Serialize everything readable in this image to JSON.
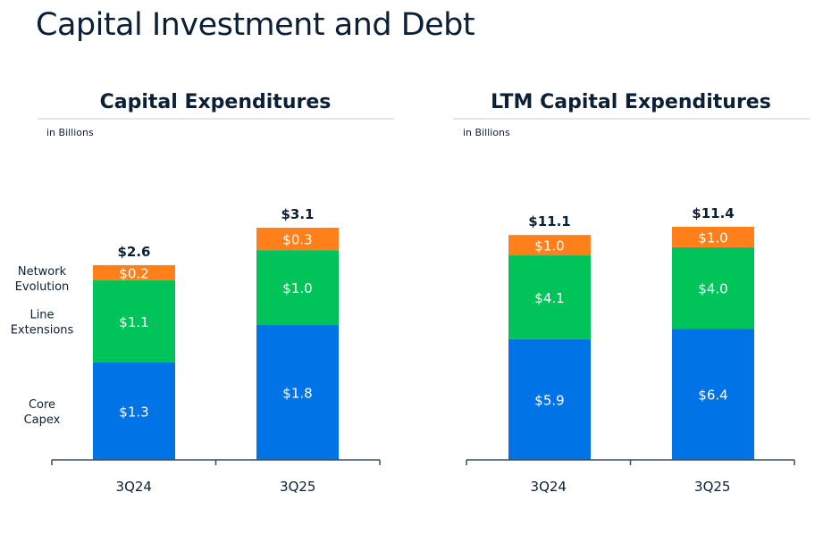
{
  "page": {
    "title": "Capital Investment and Debt"
  },
  "colors": {
    "core": "#0073e6",
    "line": "#00c35a",
    "network": "#ff7f1a",
    "text": "#0b2035",
    "axis": "#3a4a5a",
    "rule": "#d9dde2"
  },
  "chart_data": [
    {
      "type": "bar",
      "stacked": true,
      "title": "Capital Expenditures",
      "subtitle": "in Billions",
      "categories": [
        "3Q24",
        "3Q25"
      ],
      "series": [
        {
          "name": "Core Capex",
          "label": "Core\nCapex",
          "values": [
            1.3,
            1.8
          ],
          "labels": [
            "$1.3",
            "$1.8"
          ]
        },
        {
          "name": "Line Extensions",
          "label": "Line\nExtensions",
          "values": [
            1.1,
            1.0
          ],
          "labels": [
            "$1.1",
            "$1.0"
          ]
        },
        {
          "name": "Network Evolution",
          "label": "Network\nEvolution",
          "values": [
            0.2,
            0.3
          ],
          "labels": [
            "$0.2",
            "$0.3"
          ]
        }
      ],
      "totals": [
        2.6,
        3.1
      ],
      "total_labels": [
        "$2.6",
        "$3.1"
      ],
      "ylim": [
        0,
        3.1
      ],
      "legend": "left"
    },
    {
      "type": "bar",
      "stacked": true,
      "title": "LTM Capital Expenditures",
      "subtitle": "in Billions",
      "categories": [
        "3Q24",
        "3Q25"
      ],
      "series": [
        {
          "name": "Core Capex",
          "values": [
            5.9,
            6.4
          ],
          "labels": [
            "$5.9",
            "$6.4"
          ]
        },
        {
          "name": "Line Extensions",
          "values": [
            4.1,
            4.0
          ],
          "labels": [
            "$4.1",
            "$4.0"
          ]
        },
        {
          "name": "Network Evolution",
          "values": [
            1.0,
            1.0
          ],
          "labels": [
            "$1.0",
            "$1.0"
          ]
        }
      ],
      "totals": [
        11.1,
        11.4
      ],
      "total_labels": [
        "$11.1",
        "$11.4"
      ],
      "ylim": [
        0,
        11.4
      ],
      "legend": "none"
    }
  ]
}
